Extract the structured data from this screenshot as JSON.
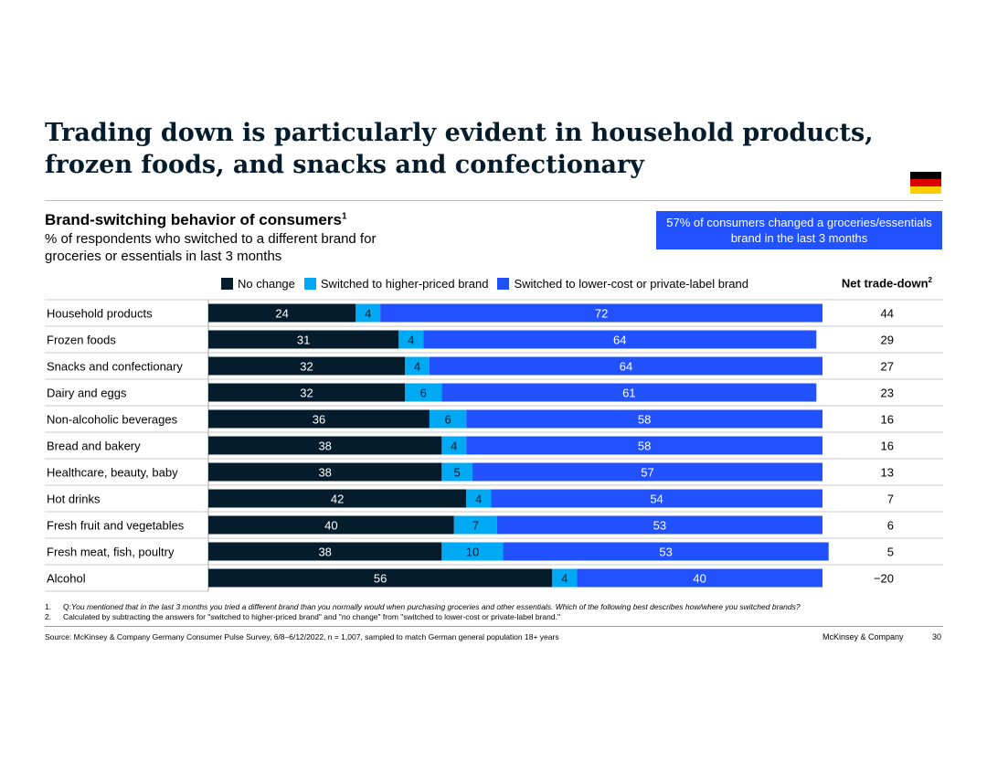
{
  "title": "Trading down is particularly evident in household products, frozen foods, and snacks and confectionary",
  "subtitle": "Brand-switching behavior of consumers",
  "subtitle_sup": "1",
  "description": "% of respondents who switched to a different brand for groceries or essentials in last 3 months",
  "callout": "57% of consumers changed a groceries/essentials brand in the last 3 months",
  "net_header": "Net trade-down",
  "net_header_sup": "2",
  "flag_colors": [
    "#000000",
    "#dd0000",
    "#ffce00"
  ],
  "footnotes": [
    {
      "num": "1.",
      "prefix": "Q: ",
      "text": "You mentioned that in the last 3 months you tried a different brand than you normally would when purchasing groceries and other essentials. Which of the following best describes how/where you switched brands?"
    },
    {
      "num": "2.",
      "prefix": "",
      "text": "Calculated by subtracting the answers for \"switched to higher-priced brand\" and \"no change\" from \"switched to lower-cost or private-label brand.\""
    }
  ],
  "source": "Source: McKinsey & Company Germany Consumer Pulse Survey, 6/8–6/12/2022, n = 1,007, sampled to match German general population 18+ years",
  "brand": "McKinsey & Company",
  "page_number": "30",
  "chart_data": {
    "type": "bar",
    "orientation": "horizontal",
    "stacked": true,
    "unit": "% of respondents",
    "categories": [
      "Household products",
      "Frozen foods",
      "Snacks and confectionary",
      "Dairy and eggs",
      "Non-alcoholic beverages",
      "Bread and bakery",
      "Healthcare, beauty, baby",
      "Hot drinks",
      "Fresh fruit and vegetables",
      "Fresh meat, fish, poultry",
      "Alcohol"
    ],
    "series": [
      {
        "name": "No change",
        "color": "#051c2c",
        "label_color": "#ffffff",
        "values": [
          24,
          31,
          32,
          32,
          36,
          38,
          38,
          42,
          40,
          38,
          56
        ]
      },
      {
        "name": "Switched to higher-priced brand",
        "color": "#00a9f4",
        "label_color": "#051c2c",
        "values": [
          4,
          4,
          4,
          6,
          6,
          4,
          5,
          4,
          7,
          10,
          4
        ]
      },
      {
        "name": "Switched to lower-cost or private-label brand",
        "color": "#2251ff",
        "label_color": "#ffffff",
        "values": [
          72,
          64,
          64,
          61,
          58,
          58,
          57,
          54,
          53,
          53,
          40
        ]
      }
    ],
    "net_trade_down": [
      "44",
      "29",
      "27",
      "23",
      "16",
      "16",
      "13",
      "7",
      "6",
      "5",
      "−20"
    ],
    "xlim": [
      0,
      100
    ]
  }
}
